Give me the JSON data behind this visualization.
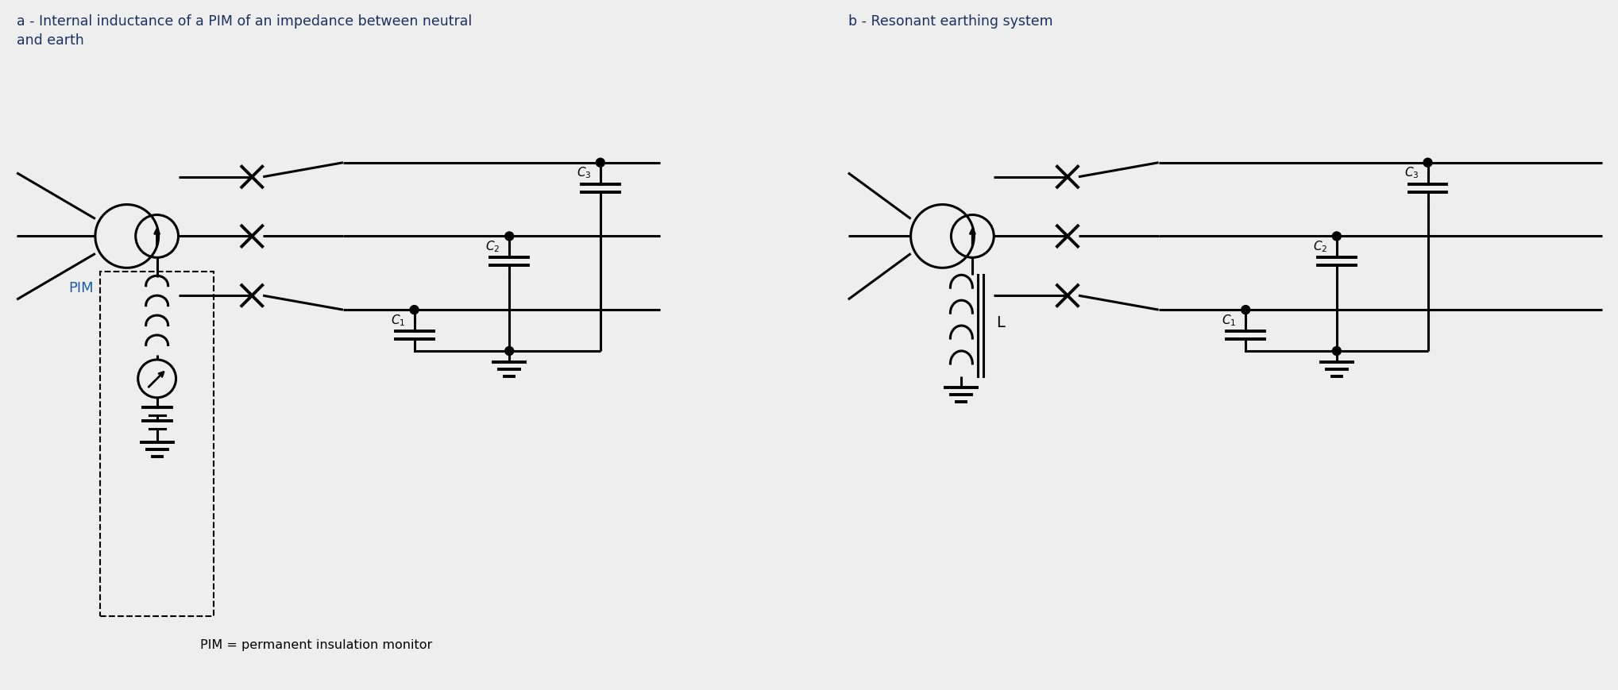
{
  "bg_color": "#eeeeee",
  "line_color": "#000000",
  "text_color": "#000000",
  "label_a": "a - Internal inductance of a PIM of an impedance between neutral\nand earth",
  "label_b": "b - Resonant earthing system",
  "pim_label": "PIM",
  "L_label": "L",
  "bottom_label": "PIM = permanent insulation monitor",
  "lw": 2.2,
  "lw_thick": 2.8
}
